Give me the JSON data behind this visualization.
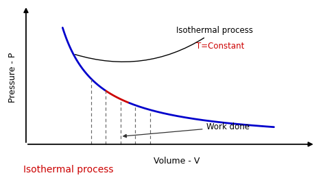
{
  "background_color": "#ffffff",
  "curve_color_blue": "#0000cc",
  "curve_color_red": "#cc0000",
  "dashed_line_color": "#666666",
  "arrow_color": "#333333",
  "title_text": "Isothermal process",
  "title_color": "#cc0000",
  "ylabel": "Pressure - P",
  "xlabel": "Volume - V",
  "annotation_isothermal": "Isothermal process",
  "annotation_T": "T=Constant",
  "annotation_work": "Work done",
  "C": 2.5,
  "x_start": 0.62,
  "x_end": 4.2,
  "x_red_start": 1.35,
  "x_red_end": 1.75,
  "dashed_x": [
    1.1,
    1.35,
    1.6,
    1.85,
    2.1
  ],
  "xlim": [
    0,
    4.9
  ],
  "ylim": [
    0,
    4.8
  ],
  "figsize": [
    4.74,
    2.66
  ],
  "dpi": 100
}
